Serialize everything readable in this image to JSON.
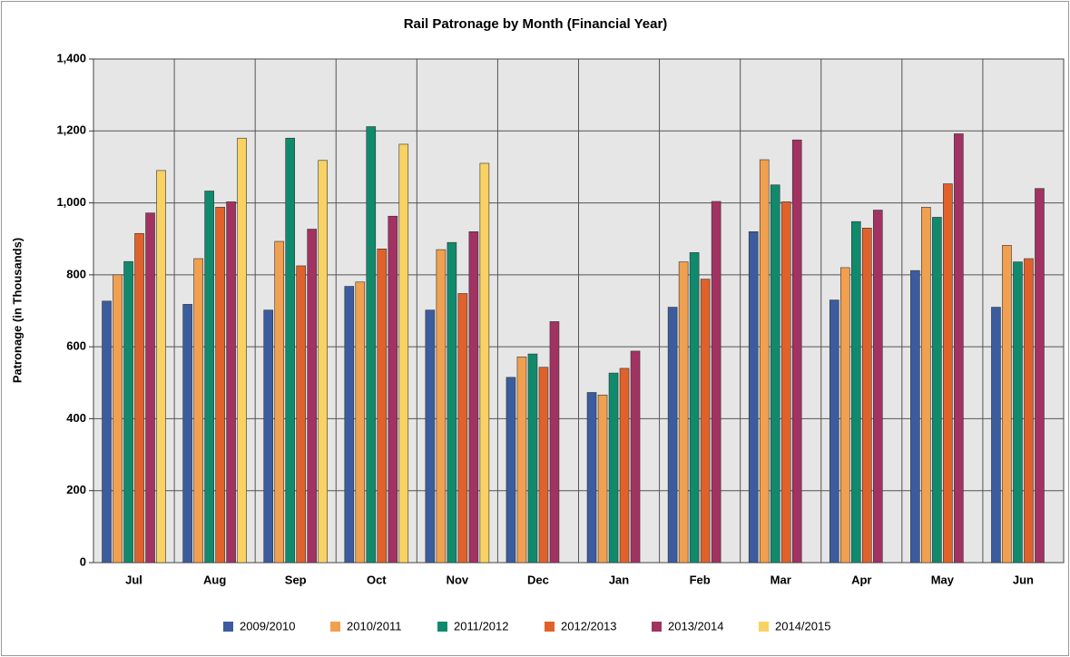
{
  "chart_data": {
    "type": "bar",
    "title": "Rail Patronage by Month (Financial Year)",
    "y_label": "Patronage (in Thousands)",
    "categories": [
      "Jul",
      "Aug",
      "Sep",
      "Oct",
      "Nov",
      "Dec",
      "Jan",
      "Feb",
      "Mar",
      "Apr",
      "May",
      "Jun"
    ],
    "series": [
      {
        "name": "2009/2010",
        "color": "#3b5c9e",
        "values": [
          727,
          718,
          702,
          768,
          702,
          515,
          473,
          710,
          920,
          730,
          812,
          710
        ]
      },
      {
        "name": "2010/2011",
        "color": "#f0a04e",
        "values": [
          800,
          845,
          893,
          780,
          870,
          572,
          466,
          836,
          1120,
          820,
          988,
          882
        ]
      },
      {
        "name": "2011/2012",
        "color": "#108a6c",
        "values": [
          837,
          1033,
          1180,
          1212,
          890,
          580,
          527,
          862,
          1050,
          948,
          960,
          836
        ]
      },
      {
        "name": "2012/2013",
        "color": "#e0622a",
        "values": [
          915,
          988,
          825,
          872,
          748,
          543,
          540,
          788,
          1003,
          930,
          1053,
          845
        ]
      },
      {
        "name": "2013/2014",
        "color": "#a23262",
        "values": [
          972,
          1003,
          927,
          963,
          920,
          670,
          588,
          1004,
          1175,
          980,
          1192,
          1040
        ]
      },
      {
        "name": "2014/2015",
        "color": "#f8d262",
        "values": [
          1090,
          1180,
          1118,
          1163,
          1110,
          null,
          null,
          null,
          null,
          null,
          null,
          null
        ]
      }
    ],
    "ylim": [
      0,
      1400
    ],
    "yticks": [
      0,
      200,
      400,
      600,
      800,
      {
        "value": 1000,
        "label": "1,000"
      },
      {
        "value": 1200,
        "label": "1,200"
      },
      {
        "value": 1400,
        "label": "1,400"
      }
    ],
    "grid": true,
    "legend": "bottom"
  }
}
